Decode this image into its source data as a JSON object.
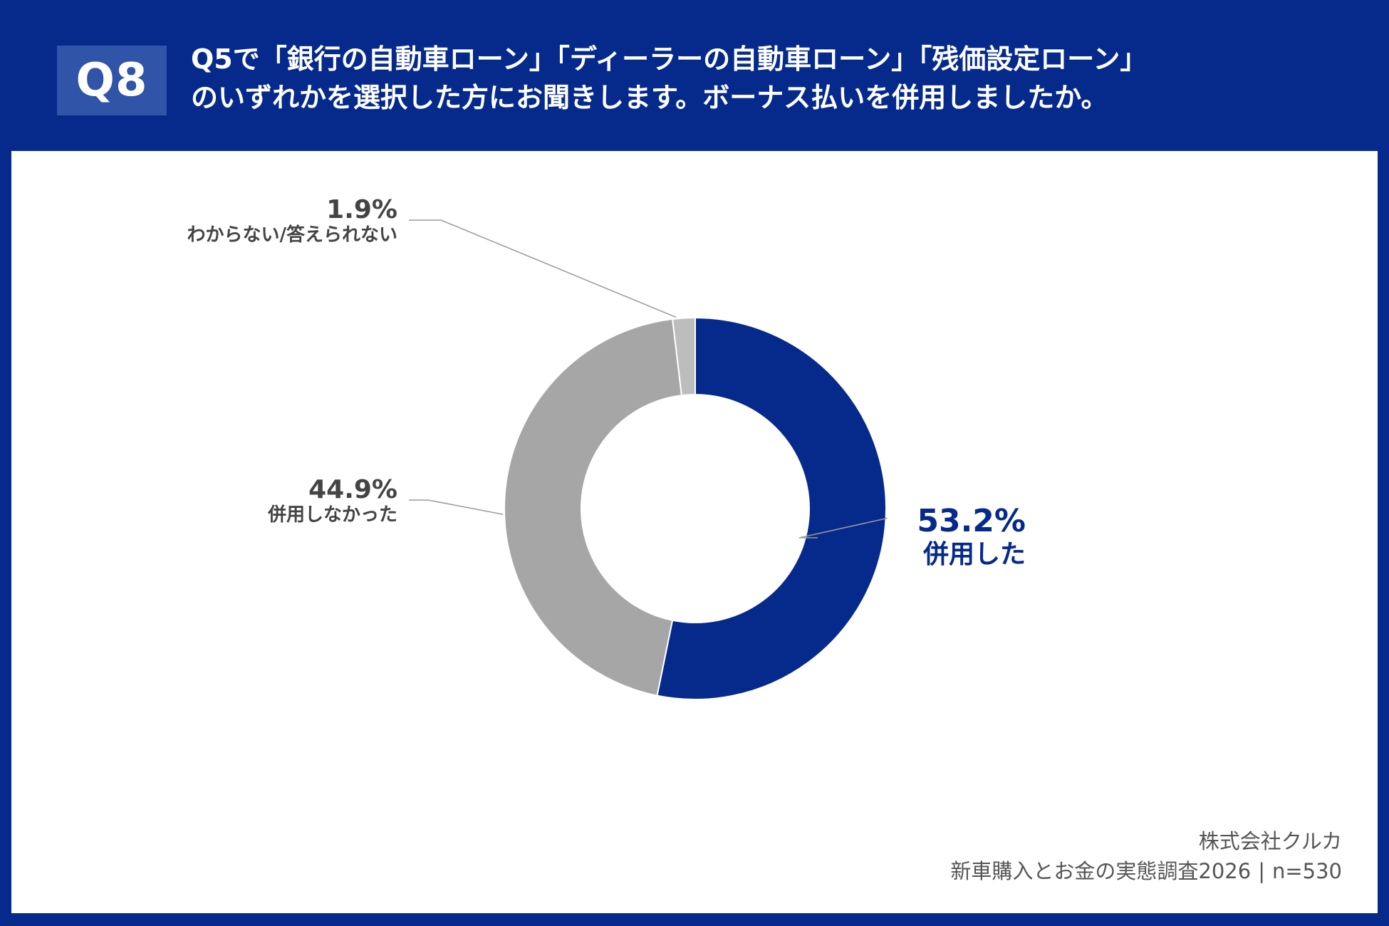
{
  "header": {
    "badge": "Q8",
    "question_line1": "Q5で「銀行の自動車ローン」「ディーラーの自動車ローン」「残価設定ローン」",
    "question_line2": "のいずれかを選択した方にお聞きします。ボーナス払いを併用しましたか。"
  },
  "colors": {
    "background": "#062a8c",
    "panel": "#ffffff",
    "accent_blue": "#062a8c",
    "gray": "#a6a6a6",
    "light_gray": "#bdbdbd",
    "label_dark": "#444444"
  },
  "chart_data": {
    "type": "pie",
    "donut": true,
    "slices": [
      {
        "label": "併用した",
        "value": 53.2,
        "value_label": "53.2%",
        "color": "#062a8c"
      },
      {
        "label": "併用しなかった",
        "value": 44.9,
        "value_label": "44.9%",
        "color": "#a6a6a6"
      },
      {
        "label": "わからない/答えられない",
        "value": 1.9,
        "value_label": "1.9%",
        "color": "#bdbdbd"
      }
    ]
  },
  "footer": {
    "source_company": "株式会社クルカ",
    "source_survey": "新車購入とお金の実態調査2026",
    "separator": "|",
    "sample_size": "n=530"
  }
}
